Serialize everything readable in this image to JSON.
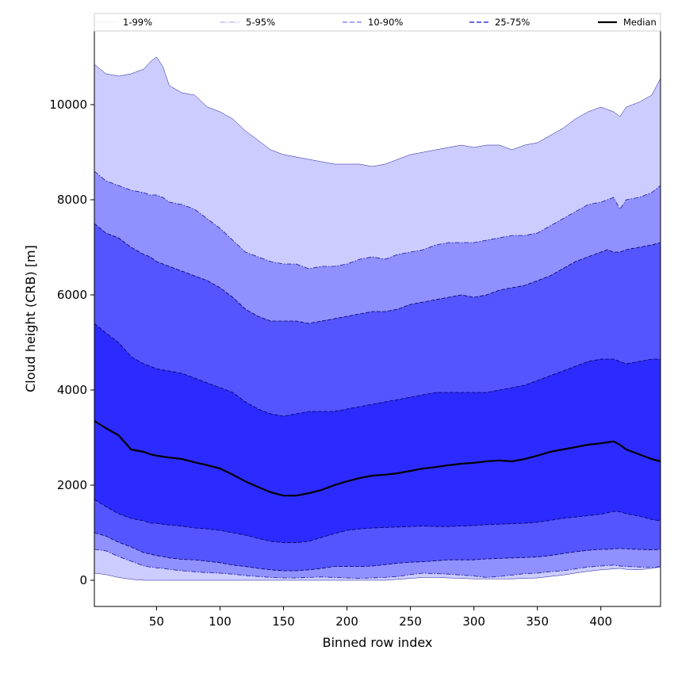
{
  "chart_data": {
    "type": "area",
    "xlabel": "Binned row index",
    "ylabel": "Cloud height (CRB) [m]",
    "xlim": [
      1,
      447
    ],
    "ylim": [
      -550,
      11550
    ],
    "xticks": [
      50,
      100,
      150,
      200,
      250,
      300,
      350,
      400
    ],
    "yticks": [
      0,
      2000,
      4000,
      6000,
      8000,
      10000
    ],
    "grid": false,
    "legend_position": "top",
    "x": [
      1,
      10,
      20,
      30,
      40,
      45,
      50,
      55,
      60,
      70,
      80,
      90,
      100,
      110,
      120,
      130,
      140,
      150,
      160,
      170,
      180,
      190,
      200,
      210,
      220,
      230,
      240,
      250,
      260,
      270,
      280,
      290,
      300,
      310,
      320,
      330,
      340,
      350,
      360,
      370,
      380,
      390,
      400,
      405,
      410,
      415,
      420,
      430,
      440,
      447
    ],
    "bands": [
      {
        "name": "1-99%",
        "color": "#ccccff",
        "lower": [
          150,
          120,
          60,
          20,
          0,
          0,
          0,
          0,
          0,
          0,
          0,
          0,
          0,
          0,
          0,
          0,
          0,
          0,
          0,
          0,
          0,
          0,
          0,
          0,
          0,
          0,
          20,
          40,
          60,
          60,
          50,
          40,
          30,
          30,
          30,
          30,
          40,
          50,
          80,
          110,
          150,
          190,
          220,
          230,
          240,
          250,
          230,
          220,
          250,
          280
        ],
        "upper": [
          10850,
          10650,
          10600,
          10650,
          10750,
          10900,
          11000,
          10800,
          10400,
          10250,
          10200,
          9950,
          9850,
          9700,
          9450,
          9250,
          9050,
          8950,
          8900,
          8850,
          8800,
          8750,
          8750,
          8750,
          8700,
          8750,
          8850,
          8950,
          9000,
          9050,
          9100,
          9150,
          9100,
          9150,
          9150,
          9050,
          9150,
          9200,
          9350,
          9500,
          9700,
          9850,
          9950,
          9900,
          9850,
          9750,
          9950,
          10050,
          10200,
          10550
        ]
      },
      {
        "name": "5-95%",
        "color": "#9090ff",
        "lower": [
          650,
          620,
          500,
          400,
          300,
          280,
          260,
          250,
          230,
          200,
          180,
          160,
          150,
          130,
          100,
          80,
          60,
          50,
          50,
          60,
          70,
          60,
          50,
          40,
          50,
          60,
          80,
          120,
          150,
          140,
          130,
          110,
          90,
          60,
          80,
          110,
          140,
          150,
          180,
          200,
          240,
          280,
          300,
          310,
          320,
          300,
          290,
          280,
          270,
          290
        ],
        "upper": [
          8600,
          8400,
          8300,
          8200,
          8150,
          8100,
          8100,
          8050,
          7950,
          7900,
          7800,
          7600,
          7400,
          7150,
          6900,
          6800,
          6700,
          6650,
          6650,
          6550,
          6600,
          6600,
          6650,
          6750,
          6800,
          6750,
          6850,
          6900,
          6950,
          7050,
          7100,
          7100,
          7100,
          7150,
          7200,
          7250,
          7250,
          7300,
          7450,
          7600,
          7750,
          7900,
          7950,
          8000,
          8050,
          7800,
          8000,
          8050,
          8150,
          8300
        ]
      },
      {
        "name": "10-90%",
        "color": "#5555ff",
        "lower": [
          1000,
          930,
          800,
          700,
          580,
          550,
          520,
          500,
          470,
          440,
          430,
          400,
          370,
          320,
          290,
          250,
          220,
          200,
          200,
          220,
          250,
          290,
          290,
          290,
          300,
          330,
          360,
          380,
          390,
          410,
          430,
          430,
          430,
          450,
          460,
          470,
          480,
          490,
          520,
          560,
          600,
          630,
          650,
          650,
          660,
          670,
          660,
          650,
          640,
          650
        ],
        "upper": [
          7500,
          7300,
          7200,
          7000,
          6850,
          6800,
          6700,
          6650,
          6600,
          6500,
          6400,
          6300,
          6150,
          5950,
          5700,
          5550,
          5450,
          5450,
          5450,
          5400,
          5450,
          5500,
          5550,
          5600,
          5650,
          5650,
          5700,
          5800,
          5850,
          5900,
          5950,
          6000,
          5950,
          6000,
          6100,
          6150,
          6200,
          6300,
          6400,
          6550,
          6700,
          6800,
          6900,
          6950,
          6900,
          6900,
          6950,
          7000,
          7050,
          7100
        ]
      },
      {
        "name": "25-75%",
        "color": "#2b2bff",
        "lower": [
          1700,
          1550,
          1400,
          1300,
          1250,
          1200,
          1200,
          1180,
          1160,
          1140,
          1100,
          1080,
          1050,
          1000,
          950,
          880,
          820,
          790,
          790,
          820,
          900,
          980,
          1050,
          1080,
          1100,
          1110,
          1120,
          1130,
          1140,
          1130,
          1130,
          1140,
          1150,
          1170,
          1180,
          1190,
          1200,
          1220,
          1260,
          1300,
          1330,
          1360,
          1390,
          1420,
          1450,
          1440,
          1400,
          1350,
          1280,
          1250
        ],
        "upper": [
          5400,
          5200,
          5000,
          4700,
          4550,
          4500,
          4450,
          4420,
          4400,
          4350,
          4250,
          4150,
          4050,
          3950,
          3750,
          3600,
          3500,
          3450,
          3500,
          3550,
          3550,
          3550,
          3600,
          3650,
          3700,
          3750,
          3800,
          3850,
          3900,
          3950,
          3950,
          3950,
          3950,
          3950,
          4000,
          4050,
          4100,
          4200,
          4300,
          4400,
          4500,
          4600,
          4650,
          4650,
          4650,
          4600,
          4550,
          4600,
          4650,
          4650
        ]
      }
    ],
    "series": [
      {
        "name": "Median",
        "color": "#000000",
        "values": [
          3350,
          3200,
          3050,
          2750,
          2700,
          2650,
          2620,
          2600,
          2580,
          2550,
          2480,
          2420,
          2350,
          2220,
          2080,
          1960,
          1850,
          1780,
          1780,
          1830,
          1900,
          2000,
          2080,
          2150,
          2200,
          2220,
          2250,
          2300,
          2350,
          2380,
          2420,
          2450,
          2470,
          2500,
          2520,
          2500,
          2550,
          2620,
          2700,
          2750,
          2800,
          2850,
          2880,
          2900,
          2920,
          2850,
          2750,
          2650,
          2550,
          2500
        ]
      }
    ],
    "legend": [
      {
        "label": "1-99%",
        "style": "dotted",
        "color": "#b8b8ff",
        "width": 0.6
      },
      {
        "label": "5-95%",
        "style": "dashdot",
        "color": "#7878f0",
        "width": 0.8
      },
      {
        "label": "10-90%",
        "style": "dashed",
        "color": "#7070f5",
        "width": 1.2
      },
      {
        "label": "25-75%",
        "style": "dashed",
        "color": "#3a3ae0",
        "width": 1.6
      },
      {
        "label": "Median",
        "style": "solid",
        "color": "#000000",
        "width": 2.2
      }
    ]
  }
}
